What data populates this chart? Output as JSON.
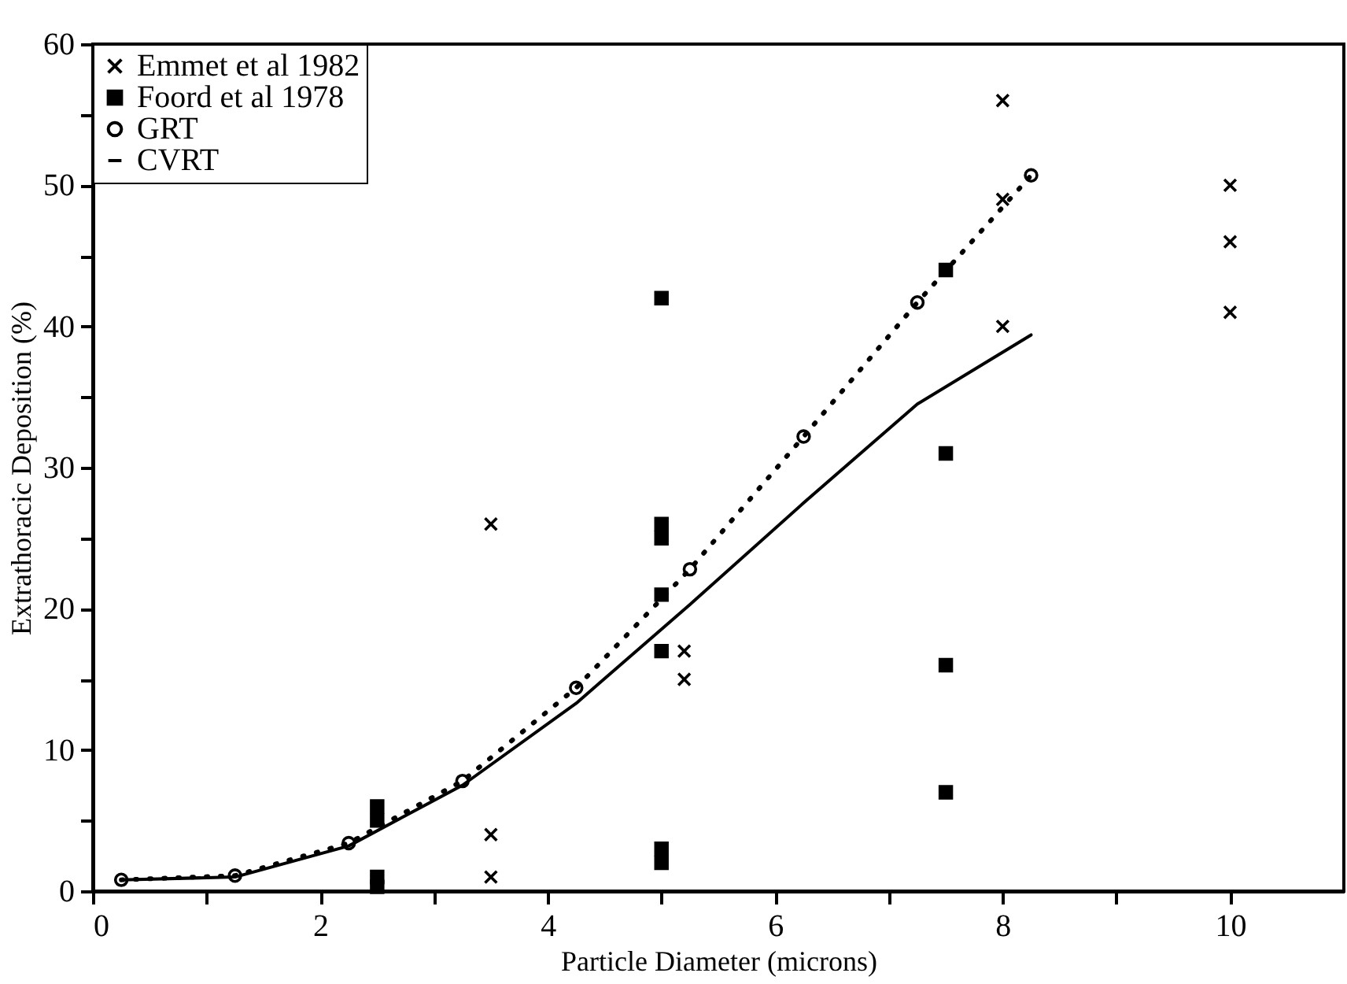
{
  "chart_data": {
    "type": "scatter",
    "xlabel": "Particle Diameter (microns)",
    "ylabel": "Extrathoracic Deposition (%)",
    "xlim": [
      0,
      11
    ],
    "xticks": [
      0,
      {
        "value": 1,
        "label": null
      },
      2,
      {
        "value": 3,
        "label": null
      },
      4,
      {
        "value": 5,
        "label": null
      },
      6,
      {
        "value": 7,
        "label": null
      },
      8,
      {
        "value": 9,
        "label": null
      },
      10
    ],
    "ylim": [
      0,
      60
    ],
    "yticks": [
      0,
      {
        "value": 5,
        "label": null
      },
      10,
      {
        "value": 15,
        "label": null
      },
      20,
      {
        "value": 25,
        "label": null
      },
      30,
      {
        "value": 35,
        "label": null
      },
      40,
      {
        "value": 45,
        "label": null
      },
      50,
      {
        "value": 55,
        "label": null
      },
      60
    ],
    "grid": false,
    "legend": "top left",
    "series": [
      {
        "name": "Emmet et al 1982",
        "marker": "cross",
        "color": "#000000",
        "x": [
          3.5,
          3.5,
          3.5,
          5.2,
          5.2,
          8,
          8,
          8,
          10,
          10,
          10
        ],
        "values": [
          26,
          4,
          1,
          17,
          15,
          56,
          49,
          40,
          50,
          46,
          41
        ]
      },
      {
        "name": "Foord et al 1978",
        "marker": "square",
        "color": "#000000",
        "x": [
          2.5,
          2.5,
          2.5,
          2.5,
          5,
          5,
          5,
          5,
          5,
          5,
          5,
          7.5,
          7.5,
          7.5,
          7.5
        ],
        "values": [
          6,
          5,
          1,
          0.3,
          42,
          26,
          25,
          21,
          17,
          3,
          2,
          44,
          31,
          16,
          7
        ]
      },
      {
        "name": "GRT",
        "type": "line",
        "marker": "circle",
        "line_style": "dotted",
        "color": "#000000",
        "x": [
          0.25,
          1.25,
          2.25,
          3.25,
          4.25,
          5.25,
          6.25,
          7.25,
          8.25
        ],
        "values": [
          0.8,
          1.1,
          3.4,
          7.8,
          14.4,
          22.8,
          32.2,
          41.7,
          50.7
        ]
      },
      {
        "name": "CVRT",
        "type": "line",
        "marker": "none",
        "line_style": "solid",
        "color": "#000000",
        "x": [
          0.25,
          1.25,
          2.25,
          3.25,
          4.25,
          5.25,
          6.25,
          7.25,
          8.25
        ],
        "values": [
          0.8,
          1.0,
          3.2,
          7.5,
          13.3,
          20.3,
          27.5,
          34.5,
          39.4
        ]
      }
    ]
  }
}
